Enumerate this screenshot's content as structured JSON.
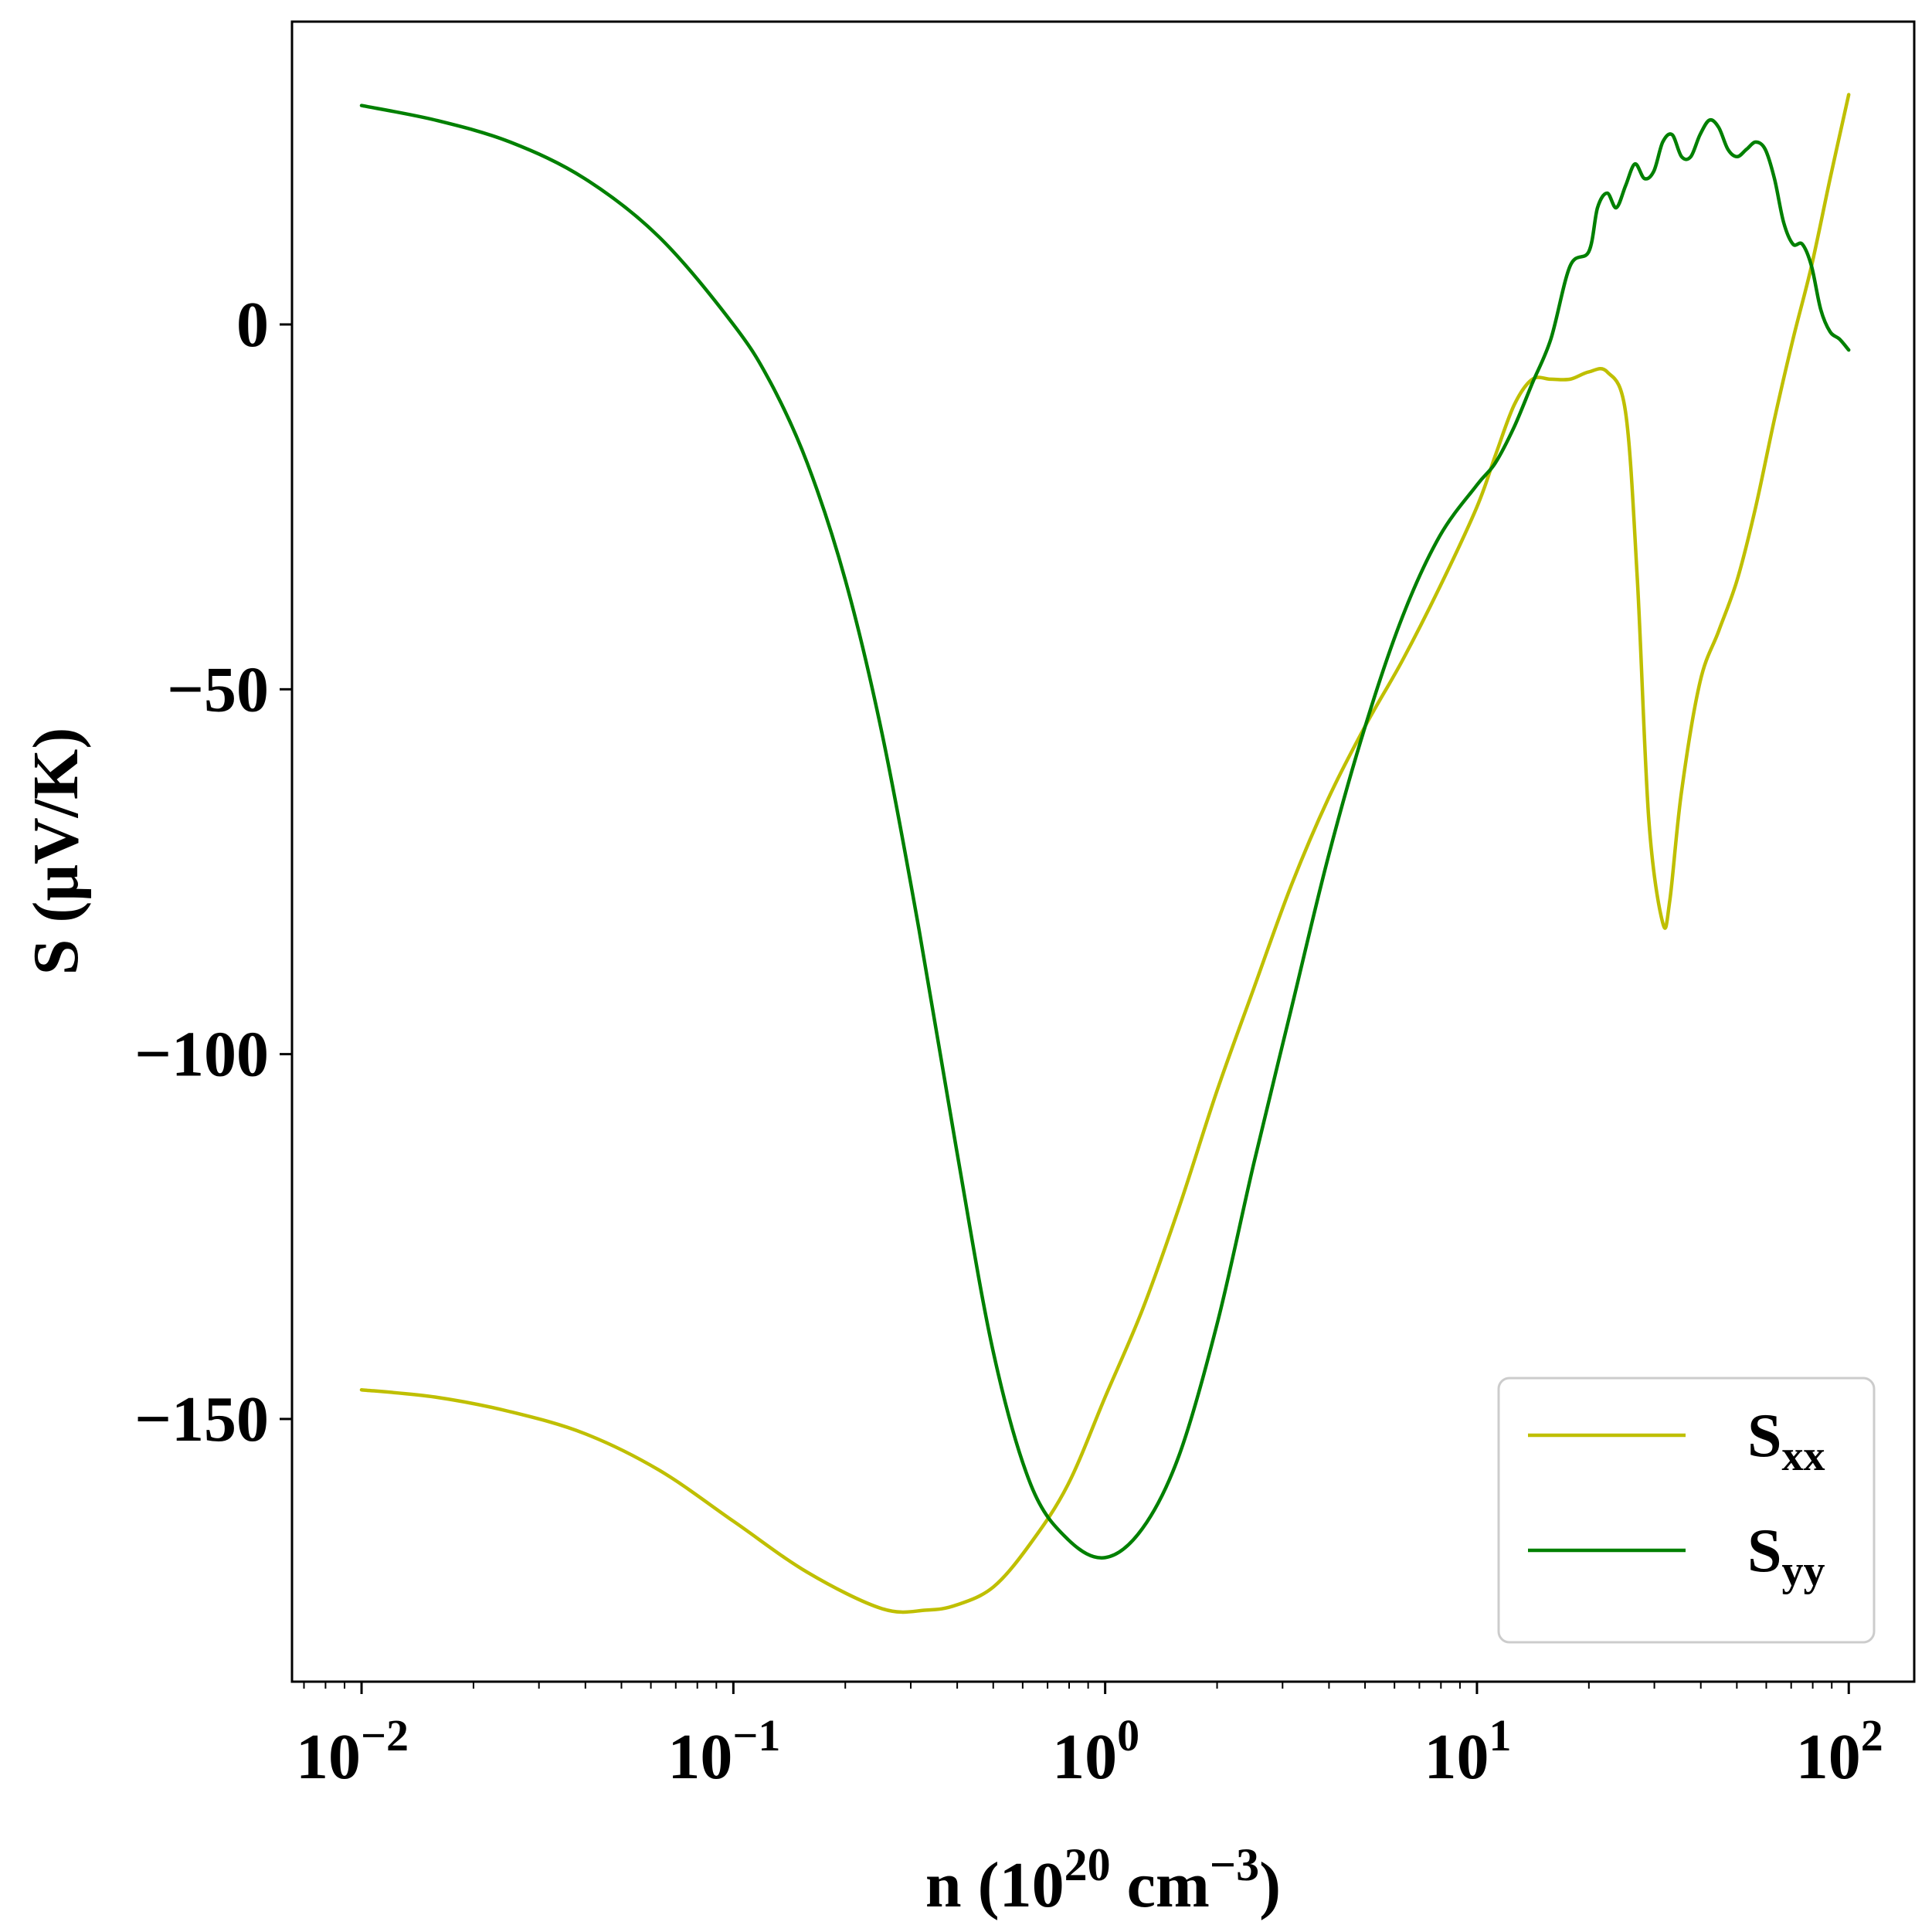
{
  "chart_data": {
    "type": "line",
    "xscale": "log",
    "xlim": [
      0.0065,
      150
    ],
    "ylim": [
      -186,
      41.5
    ],
    "xlabel": {
      "base": "n (10",
      "sup1": "20",
      "mid": " cm",
      "sup2": "−3",
      "end": ")"
    },
    "ylabel": "S (μV/K)",
    "xticks": [
      {
        "value": 0.01,
        "base": "10",
        "exp": "−2"
      },
      {
        "value": 0.1,
        "base": "10",
        "exp": "−1"
      },
      {
        "value": 1,
        "base": "10",
        "exp": "0"
      },
      {
        "value": 10,
        "base": "10",
        "exp": "1"
      },
      {
        "value": 100,
        "base": "10",
        "exp": "2"
      }
    ],
    "yticks": [
      {
        "value": 0,
        "label": "0"
      },
      {
        "value": -50,
        "label": "−50"
      },
      {
        "value": -100,
        "label": "−100"
      },
      {
        "value": -150,
        "label": "−150"
      }
    ],
    "grid": false,
    "legend": {
      "position": "lower-right"
    },
    "series": [
      {
        "name": "S",
        "sub": "xx",
        "color": "#bfbf00",
        "points": [
          [
            0.01,
            -146
          ],
          [
            0.0158,
            -147
          ],
          [
            0.0251,
            -149
          ],
          [
            0.0398,
            -152
          ],
          [
            0.0631,
            -157
          ],
          [
            0.1,
            -164
          ],
          [
            0.158,
            -171
          ],
          [
            0.251,
            -176
          ],
          [
            0.33,
            -176.2
          ],
          [
            0.398,
            -175.5
          ],
          [
            0.501,
            -173
          ],
          [
            0.631,
            -167
          ],
          [
            0.794,
            -159
          ],
          [
            1,
            -147
          ],
          [
            1.26,
            -135
          ],
          [
            1.58,
            -121
          ],
          [
            2,
            -105
          ],
          [
            2.51,
            -91
          ],
          [
            3.16,
            -77
          ],
          [
            3.98,
            -65
          ],
          [
            5.01,
            -55
          ],
          [
            6.31,
            -46
          ],
          [
            7.94,
            -36
          ],
          [
            10,
            -25
          ],
          [
            11.2,
            -18
          ],
          [
            12.6,
            -11
          ],
          [
            14.1,
            -7.5
          ],
          [
            15.8,
            -7.5
          ],
          [
            17.8,
            -7.5
          ],
          [
            20,
            -6.5
          ],
          [
            22.4,
            -6.5
          ],
          [
            25.1,
            -12
          ],
          [
            27,
            -35
          ],
          [
            29,
            -68
          ],
          [
            31.6,
            -82
          ],
          [
            33,
            -79
          ],
          [
            35.5,
            -64
          ],
          [
            39.8,
            -49
          ],
          [
            44.7,
            -42
          ],
          [
            50.1,
            -35
          ],
          [
            56.2,
            -25
          ],
          [
            63.1,
            -13
          ],
          [
            70.8,
            -2
          ],
          [
            79.4,
            8
          ],
          [
            89.1,
            20
          ],
          [
            100,
            31.5
          ]
        ]
      },
      {
        "name": "S",
        "sub": "yy",
        "color": "#008000",
        "points": [
          [
            0.01,
            30
          ],
          [
            0.0158,
            28
          ],
          [
            0.0251,
            25
          ],
          [
            0.0398,
            20
          ],
          [
            0.0631,
            12
          ],
          [
            0.1,
            0
          ],
          [
            0.126,
            -8
          ],
          [
            0.158,
            -19
          ],
          [
            0.2,
            -35
          ],
          [
            0.251,
            -56
          ],
          [
            0.316,
            -83
          ],
          [
            0.398,
            -113
          ],
          [
            0.501,
            -141
          ],
          [
            0.631,
            -159
          ],
          [
            0.794,
            -166.5
          ],
          [
            1,
            -169
          ],
          [
            1.26,
            -165
          ],
          [
            1.58,
            -155
          ],
          [
            2,
            -137
          ],
          [
            2.51,
            -115
          ],
          [
            3.16,
            -94
          ],
          [
            3.98,
            -73
          ],
          [
            5.01,
            -55
          ],
          [
            6.31,
            -40
          ],
          [
            7.94,
            -29
          ],
          [
            10,
            -22
          ],
          [
            11.2,
            -19
          ],
          [
            12.6,
            -14
          ],
          [
            14.1,
            -8
          ],
          [
            15.8,
            -2
          ],
          [
            17.8,
            8
          ],
          [
            20,
            10
          ],
          [
            21.1,
            16
          ],
          [
            22.4,
            18
          ],
          [
            23.7,
            16
          ],
          [
            25.1,
            19
          ],
          [
            26.6,
            22
          ],
          [
            28.2,
            20
          ],
          [
            29.9,
            21
          ],
          [
            31.6,
            25
          ],
          [
            33.5,
            26
          ],
          [
            35.5,
            23
          ],
          [
            37.6,
            23
          ],
          [
            39.8,
            26
          ],
          [
            42.2,
            28
          ],
          [
            44.7,
            27
          ],
          [
            47.3,
            24
          ],
          [
            50.1,
            23
          ],
          [
            53.1,
            24
          ],
          [
            56.2,
            25
          ],
          [
            59.6,
            24
          ],
          [
            63.1,
            20
          ],
          [
            66.8,
            14
          ],
          [
            70.8,
            11
          ],
          [
            75,
            11
          ],
          [
            79.4,
            8
          ],
          [
            84.1,
            2
          ],
          [
            89.1,
            -1
          ],
          [
            94.4,
            -2
          ],
          [
            100,
            -3.5
          ]
        ]
      }
    ]
  }
}
